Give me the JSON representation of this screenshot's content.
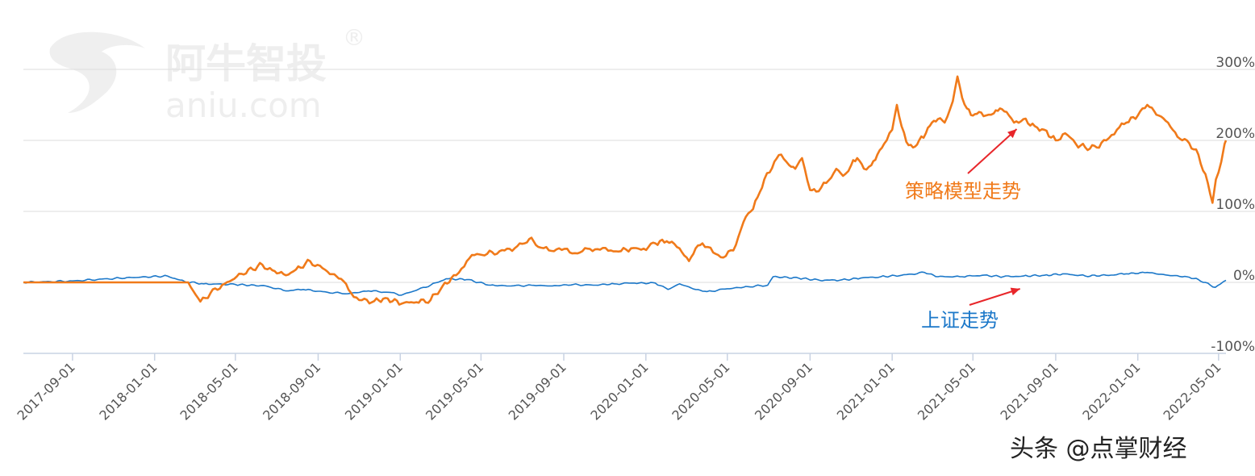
{
  "watermark": {
    "brand": "阿牛智投",
    "registered": "®",
    "domain": "aniu.com"
  },
  "credit": "头条 @点掌财经",
  "colors": {
    "strategy": "#F07A1A",
    "index": "#1C78C9",
    "arrow": "#E8262A",
    "grid": "#DDDDDD"
  },
  "chart_data": {
    "type": "line",
    "title": "",
    "xlabel": "",
    "ylabel": "",
    "ylim": [
      -100,
      300
    ],
    "y_ticks": [
      "300%",
      "200%",
      "100%",
      "0%",
      "-100%"
    ],
    "y_tick_values": [
      300,
      200,
      100,
      0,
      -100
    ],
    "x_ticks": [
      "2017-09-01",
      "2018-01-01",
      "2018-05-01",
      "2018-09-01",
      "2019-01-01",
      "2019-05-01",
      "2019-09-01",
      "2020-01-01",
      "2020-05-01",
      "2020-09-01",
      "2021-01-01",
      "2021-05-01",
      "2021-09-01",
      "2022-01-01",
      "2022-05-01"
    ],
    "x_range": [
      "2017-06-20",
      "2022-05-12"
    ],
    "grid": true,
    "legend": "none",
    "annotations": [
      {
        "text": "策略模型走势",
        "target_series": "strategy",
        "target": {
          "x": "2021-07-05",
          "y": 225
        }
      },
      {
        "text": "上证走势",
        "target_series": "index",
        "target": {
          "x": "2021-07-10",
          "y": 0
        }
      }
    ],
    "series": [
      {
        "id": "strategy",
        "x": [
          "2017-06-20",
          "2017-09-01",
          "2017-12-01",
          "2018-02-20",
          "2018-03-10",
          "2018-03-25",
          "2018-04-15",
          "2018-05-10",
          "2018-06-10",
          "2018-06-25",
          "2018-07-15",
          "2018-07-30",
          "2018-08-20",
          "2018-09-15",
          "2018-10-05",
          "2018-10-20",
          "2018-11-01",
          "2018-11-20",
          "2018-12-10",
          "2019-01-03",
          "2019-01-25",
          "2019-02-15",
          "2019-03-05",
          "2019-03-25",
          "2019-04-10",
          "2019-04-25",
          "2019-05-10",
          "2019-06-05",
          "2019-06-20",
          "2019-07-05",
          "2019-07-15",
          "2019-07-25",
          "2019-08-10",
          "2019-08-25",
          "2019-09-10",
          "2019-09-25",
          "2019-10-10",
          "2019-10-25",
          "2019-11-10",
          "2019-11-25",
          "2019-12-10",
          "2019-12-25",
          "2020-01-05",
          "2020-01-15",
          "2020-02-01",
          "2020-02-20",
          "2020-03-05",
          "2020-03-15",
          "2020-03-25",
          "2020-04-10",
          "2020-04-25",
          "2020-05-10",
          "2020-05-25",
          "2020-06-05",
          "2020-06-15",
          "2020-06-25",
          "2020-07-03",
          "2020-07-10",
          "2020-07-20",
          "2020-08-01",
          "2020-08-10",
          "2020-08-20",
          "2020-09-01",
          "2020-09-10",
          "2020-09-25",
          "2020-10-10",
          "2020-10-20",
          "2020-11-01",
          "2020-11-10",
          "2020-11-20",
          "2020-12-01",
          "2020-12-10",
          "2020-12-20",
          "2021-01-01",
          "2021-01-08",
          "2021-01-15",
          "2021-01-22",
          "2021-02-01",
          "2021-02-10",
          "2021-02-20",
          "2021-03-01",
          "2021-03-10",
          "2021-03-20",
          "2021-04-01",
          "2021-04-08",
          "2021-04-15",
          "2021-04-22",
          "2021-05-01",
          "2021-05-10",
          "2021-05-20",
          "2021-06-01",
          "2021-06-10",
          "2021-06-20",
          "2021-07-01",
          "2021-07-15",
          "2021-08-01",
          "2021-08-15",
          "2021-09-01",
          "2021-09-15",
          "2021-10-01",
          "2021-10-15",
          "2021-11-01",
          "2021-11-15",
          "2021-12-01",
          "2021-12-15",
          "2022-01-01",
          "2022-01-15",
          "2022-02-01",
          "2022-02-15",
          "2022-03-01",
          "2022-03-15",
          "2022-04-01",
          "2022-04-15",
          "2022-04-22",
          "2022-04-27",
          "2022-05-01",
          "2022-05-05",
          "2022-05-10",
          "2022-05-12"
        ],
        "y": [
          0,
          0,
          0,
          0,
          -27,
          -15,
          -2,
          12,
          25,
          17,
          10,
          18,
          30,
          15,
          5,
          -15,
          -25,
          -28,
          -22,
          -30,
          -28,
          -25,
          -5,
          10,
          30,
          40,
          40,
          45,
          48,
          55,
          63,
          50,
          45,
          48,
          42,
          42,
          47,
          46,
          45,
          44,
          48,
          46,
          50,
          55,
          58,
          48,
          30,
          48,
          55,
          42,
          35,
          45,
          85,
          100,
          120,
          145,
          155,
          170,
          180,
          165,
          160,
          175,
          130,
          128,
          140,
          160,
          150,
          165,
          175,
          160,
          165,
          180,
          195,
          215,
          250,
          220,
          198,
          190,
          200,
          210,
          225,
          230,
          225,
          255,
          290,
          260,
          245,
          235,
          240,
          235,
          238,
          245,
          240,
          225,
          230,
          220,
          215,
          200,
          210,
          195,
          190,
          190,
          200,
          215,
          225,
          235,
          250,
          235,
          225,
          205,
          200,
          180,
          140,
          112,
          145,
          155,
          170,
          195,
          200
        ]
      },
      {
        "id": "index",
        "x": [
          "2017-06-20",
          "2017-09-01",
          "2017-11-10",
          "2018-01-20",
          "2018-02-15",
          "2018-03-15",
          "2018-05-01",
          "2018-06-15",
          "2018-07-15",
          "2018-08-10",
          "2018-09-15",
          "2018-10-15",
          "2018-11-15",
          "2018-12-15",
          "2019-01-03",
          "2019-02-15",
          "2019-03-10",
          "2019-04-10",
          "2019-05-15",
          "2019-06-15",
          "2019-07-15",
          "2019-08-15",
          "2019-09-15",
          "2019-10-15",
          "2019-11-15",
          "2019-12-15",
          "2020-01-15",
          "2020-02-03",
          "2020-02-20",
          "2020-03-15",
          "2020-04-01",
          "2020-05-01",
          "2020-06-01",
          "2020-06-30",
          "2020-07-08",
          "2020-08-15",
          "2020-09-15",
          "2020-10-15",
          "2020-11-15",
          "2020-12-15",
          "2021-01-15",
          "2021-02-18",
          "2021-03-10",
          "2021-04-15",
          "2021-05-15",
          "2021-06-15",
          "2021-07-15",
          "2021-08-15",
          "2021-09-15",
          "2021-10-15",
          "2021-11-15",
          "2021-12-15",
          "2022-01-15",
          "2022-02-15",
          "2022-03-15",
          "2022-04-01",
          "2022-04-26",
          "2022-05-12"
        ],
        "y": [
          0,
          2,
          6,
          9,
          1,
          -2,
          -3,
          -5,
          -12,
          -10,
          -14,
          -16,
          -12,
          -14,
          -18,
          -4,
          5,
          4,
          -4,
          -5,
          -4,
          -5,
          -3,
          -4,
          -2,
          -1,
          -1,
          -10,
          -2,
          -10,
          -13,
          -9,
          -6,
          -4,
          8,
          6,
          3,
          3,
          6,
          8,
          10,
          14,
          8,
          8,
          10,
          8,
          9,
          10,
          12,
          9,
          10,
          12,
          14,
          10,
          8,
          4,
          -7,
          3
        ]
      }
    ]
  }
}
